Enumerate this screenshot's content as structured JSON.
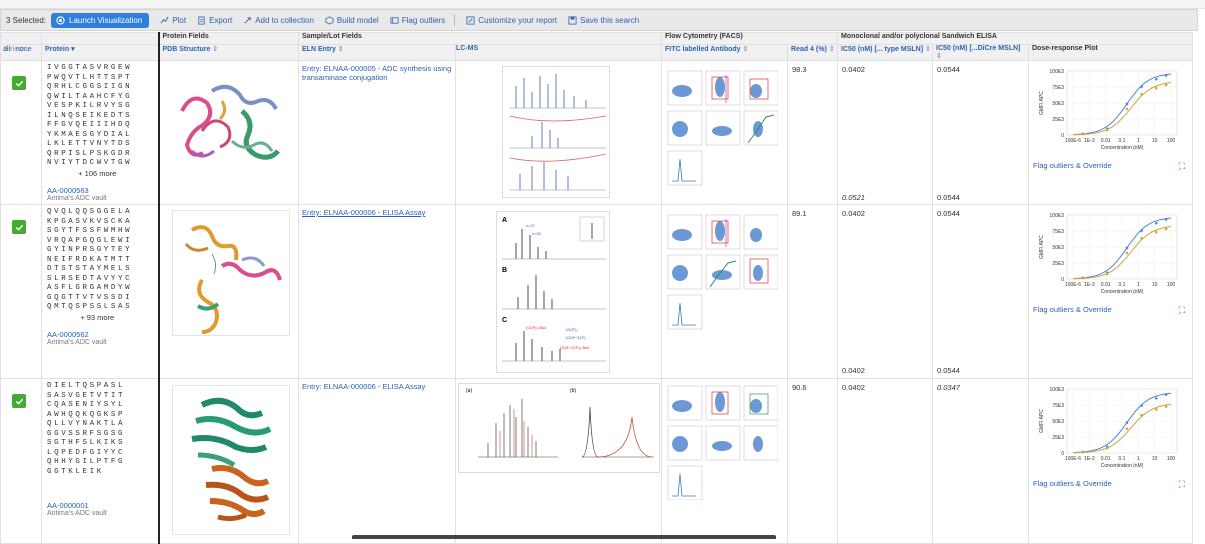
{
  "toolbar": {
    "count_label": "3 Selected:",
    "launch_label": "Launch Visualization",
    "plot_label": "Plot",
    "export_label": "Export",
    "collection_label": "Add to collection",
    "build_label": "Build model",
    "outliers_label": "Flag outliers",
    "customize_label": "Customize your report",
    "save_label": "Save this search"
  },
  "header": {
    "groups": {
      "protein_fields": "Protein Fields",
      "sample_fields": "Sample/Lot Fields",
      "facs": "Flow Cytometry (FACS)",
      "elisa": "Monoclonal and/or polyclonal Sandwich ELISA"
    },
    "select_label": "Select...",
    "all_label": "all",
    "none_label": "none",
    "columns": {
      "protein": "Protein",
      "pdb": "PDB Structure",
      "eln": "ELN Entry",
      "lcms": "LC-MS",
      "fitc": "FITC labelled Antibody",
      "read4": "Read 4 (%)",
      "ic50a": "IC50 (nM) [... type MSLN]",
      "ic50b": "IC50 (nM) [...DiCre MSLN]",
      "dose": "Dose-response Plot"
    }
  },
  "rows": [
    {
      "seq": [
        "IVGGTASVRGEW",
        "PWQVTLHTTSPT",
        "QRHLCGGSIIGN",
        "QWILTAAHCFYG",
        "VESPKILRVYSG",
        "ILNQSEIKEDTS",
        "FFGVQEIIIHDQ",
        "YKMAESGYDIAL",
        "LKLETTVNYTDS",
        "QRPISLPSKGDR",
        "NVIYTDCWVTGW"
      ],
      "more": "+ 106 more",
      "id": "AA-0000563",
      "vault": "Antima's ADC vault",
      "eln": "Entry: ELNAA-000005 - ADC synthesis using transaminase conjugation",
      "read4": "98.3",
      "ic50a": "0.0402",
      "ic50b": "0.0544",
      "ic50a_2": "0.0521",
      "ic50b_2": "0.0544",
      "flag": "Flag outliers & Override"
    },
    {
      "seq": [
        "QVQLQQSGGELA",
        "KPGASVKVSCKA",
        "SGYTFSSFWMHW",
        "VRQAPGQGLEWI",
        "GYINPRSGYTEY",
        "NEIFRDKATMTT",
        "DTSTSTAYMELS",
        "SLRSEDTAVYYC",
        "ASFLGRGAMDYW",
        "GQGTTVTVSSDI",
        "QMTQSPSSLSAS"
      ],
      "more": "+ 93 more",
      "id": "AA-0000562",
      "vault": "Antima's ADC vault",
      "eln": "Entry: ELNAA-000006 - ELISA Assay",
      "read4": "89.1",
      "ic50a": "0.0402",
      "ic50b": "0.0544",
      "ic50a_2": "0.0402",
      "ic50b_2": "0.0544",
      "flag": "Flag outliers & Override"
    },
    {
      "seq": [
        "DIELTQSPASL",
        "SASVGETVTIT",
        "CQASENIYSYL",
        "AWHQQKQGKSP",
        "QLLVYNAKTLA",
        "GGVSSRFSGSG",
        "SGTHFSLKIKS",
        "LQPEDFGIYYC",
        "QHHYGILPTFG",
        "GGTKLEIK"
      ],
      "more": "",
      "id": "AA-0000001",
      "vault": "Antima's ADC vault",
      "eln": "Entry: ELNAA-000006 - ELISA Assay",
      "read4": "90.6",
      "ic50a": "0.0402",
      "ic50b": "0.0347",
      "flag": "Flag outliers & Override"
    }
  ],
  "plot": {
    "yticks": [
      "100E3",
      "75E3",
      "50E3",
      "25E3",
      "0"
    ],
    "xticks": [
      "100E-6",
      "1E-3",
      "0.01",
      "0.1",
      "1",
      "10",
      "100"
    ],
    "ylabel": "GMFI APC",
    "xlabel": "Concentration (nM)"
  },
  "colors": {
    "accent": "#2e7fdc",
    "check": "#46a936",
    "link": "#2a62b5",
    "blue_series": "#4a86e8",
    "orange_series": "#d8a13a"
  }
}
